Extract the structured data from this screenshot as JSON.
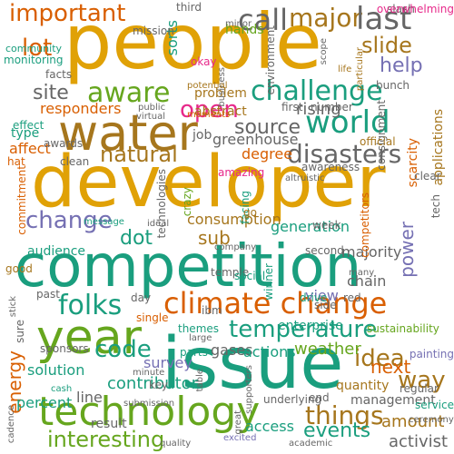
{
  "palette": {
    "gold": "#e0a106",
    "teal": "#1a9e7e",
    "orange": "#d95f02",
    "purple": "#7570b3",
    "green": "#66a61e",
    "brown": "#a6761d",
    "gray": "#666666",
    "pink": "#e7298a"
  },
  "words": [
    {
      "text": "people",
      "color": "gold"
    },
    {
      "text": "developer",
      "color": "gold"
    },
    {
      "text": "competition",
      "color": "teal"
    },
    {
      "text": "issue",
      "color": "teal"
    },
    {
      "text": "technology",
      "color": "green"
    },
    {
      "text": "water",
      "color": "brown"
    },
    {
      "text": "climate change",
      "color": "orange"
    },
    {
      "text": "year",
      "color": "green"
    },
    {
      "text": "world",
      "color": "teal"
    },
    {
      "text": "challenge",
      "color": "teal"
    },
    {
      "text": "things",
      "color": "brown"
    },
    {
      "text": "folks",
      "color": "teal"
    },
    {
      "text": "important",
      "color": "orange"
    },
    {
      "text": "temperature",
      "color": "teal"
    },
    {
      "text": "natural",
      "color": "brown"
    },
    {
      "text": "disasters",
      "color": "gray"
    },
    {
      "text": "call",
      "color": "gray"
    },
    {
      "text": "major",
      "color": "brown"
    },
    {
      "text": "last",
      "color": "gray"
    },
    {
      "text": "slide",
      "color": "brown"
    },
    {
      "text": "aware",
      "color": "green"
    },
    {
      "text": "change",
      "color": "purple"
    },
    {
      "text": "code",
      "color": "teal"
    },
    {
      "text": "idea",
      "color": "brown"
    },
    {
      "text": "open",
      "color": "pink"
    },
    {
      "text": "way",
      "color": "brown"
    },
    {
      "text": "interesting",
      "color": "green"
    },
    {
      "text": "events",
      "color": "teal"
    },
    {
      "text": "lot",
      "color": "orange"
    },
    {
      "text": "site",
      "color": "gray"
    },
    {
      "text": "help",
      "color": "purple"
    },
    {
      "text": "source",
      "color": "gray"
    },
    {
      "text": "power",
      "color": "purple"
    },
    {
      "text": "dot",
      "color": "teal"
    },
    {
      "text": "energy",
      "color": "orange"
    },
    {
      "text": "next",
      "color": "orange"
    },
    {
      "text": "sub",
      "color": "brown"
    },
    {
      "text": "generation",
      "color": "teal"
    },
    {
      "text": "rising",
      "color": "gray"
    },
    {
      "text": "majority",
      "color": "gray"
    },
    {
      "text": "responders",
      "color": "orange"
    },
    {
      "text": "sorts",
      "color": "teal"
    },
    {
      "text": "hands",
      "color": "green"
    },
    {
      "text": "greenhouse",
      "color": "gray"
    },
    {
      "text": "degree",
      "color": "orange"
    },
    {
      "text": "amount",
      "color": "brown"
    },
    {
      "text": "gases",
      "color": "gray"
    },
    {
      "text": "weather",
      "color": "green"
    },
    {
      "text": "actions",
      "color": "teal"
    },
    {
      "text": "survey",
      "color": "purple"
    },
    {
      "text": "percent",
      "color": "teal"
    },
    {
      "text": "contributor",
      "color": "teal"
    },
    {
      "text": "line",
      "color": "gray"
    },
    {
      "text": "access",
      "color": "teal"
    },
    {
      "text": "activist",
      "color": "gray"
    },
    {
      "text": "management",
      "color": "gray"
    },
    {
      "text": "view",
      "color": "purple"
    },
    {
      "text": "chain",
      "color": "gray"
    },
    {
      "text": "consumption",
      "color": "brown"
    },
    {
      "text": "audience",
      "color": "teal"
    },
    {
      "text": "solution",
      "color": "teal"
    },
    {
      "text": "result",
      "color": "gray"
    },
    {
      "text": "quantity",
      "color": "brown"
    },
    {
      "text": "abstract",
      "color": "brown"
    },
    {
      "text": "problem",
      "color": "brown"
    },
    {
      "text": "affect",
      "color": "orange"
    },
    {
      "text": "type",
      "color": "teal"
    },
    {
      "text": "facts",
      "color": "gray"
    },
    {
      "text": "monitoring",
      "color": "teal"
    },
    {
      "text": "environment",
      "color": "gray"
    },
    {
      "text": "mission",
      "color": "gray"
    },
    {
      "text": "community",
      "color": "teal"
    },
    {
      "text": "scarcity",
      "color": "orange"
    },
    {
      "text": "applications",
      "color": "brown"
    },
    {
      "text": "job",
      "color": "gray"
    },
    {
      "text": "enterprise",
      "color": "teal"
    },
    {
      "text": "winner",
      "color": "teal"
    },
    {
      "text": "sustainability",
      "color": "green"
    },
    {
      "text": "third",
      "color": "gray"
    },
    {
      "text": "slash",
      "color": "gray"
    },
    {
      "text": "overwhelming",
      "color": "pink"
    },
    {
      "text": "minor",
      "color": "gray"
    },
    {
      "text": "scope",
      "color": "gray"
    },
    {
      "text": "particular",
      "color": "brown"
    },
    {
      "text": "life",
      "color": "brown"
    },
    {
      "text": "bunch",
      "color": "gray"
    },
    {
      "text": "consignment",
      "color": "gray"
    },
    {
      "text": "okay",
      "color": "pink"
    },
    {
      "text": "business",
      "color": "gray"
    },
    {
      "text": "potential",
      "color": "brown"
    },
    {
      "text": "public",
      "color": "gray"
    },
    {
      "text": "virtual",
      "color": "gray"
    },
    {
      "text": "moments",
      "color": "orange"
    },
    {
      "text": "effect",
      "color": "teal"
    },
    {
      "text": "first",
      "color": "gray"
    },
    {
      "text": "number",
      "color": "gray"
    },
    {
      "text": "official",
      "color": "brown"
    },
    {
      "text": "awards",
      "color": "gray"
    },
    {
      "text": "awareness",
      "color": "gray"
    },
    {
      "text": "hat",
      "color": "orange"
    },
    {
      "text": "clean",
      "color": "gray"
    },
    {
      "text": "technologies",
      "color": "gray"
    },
    {
      "text": "commitment",
      "color": "orange"
    },
    {
      "text": "facing",
      "color": "teal"
    },
    {
      "text": "amazing",
      "color": "pink"
    },
    {
      "text": "altruistic",
      "color": "gray"
    },
    {
      "text": "competitors",
      "color": "orange"
    },
    {
      "text": "clear",
      "color": "gray"
    },
    {
      "text": "tech",
      "color": "gray"
    },
    {
      "text": "crazy",
      "color": "green"
    },
    {
      "text": "go",
      "color": "brown"
    },
    {
      "text": "message",
      "color": "teal"
    },
    {
      "text": "ideal",
      "color": "gray"
    },
    {
      "text": "week",
      "color": "gray"
    },
    {
      "text": "company",
      "color": "gray"
    },
    {
      "text": "temple",
      "color": "gray"
    },
    {
      "text": "second",
      "color": "gray"
    },
    {
      "text": "good",
      "color": "brown"
    },
    {
      "text": "stick",
      "color": "gray"
    },
    {
      "text": "social",
      "color": "teal"
    },
    {
      "text": "many",
      "color": "gray"
    },
    {
      "text": "past",
      "color": "gray"
    },
    {
      "text": "day",
      "color": "gray"
    },
    {
      "text": "drive",
      "color": "teal"
    },
    {
      "text": "side",
      "color": "gray"
    },
    {
      "text": "red",
      "color": "gray"
    },
    {
      "text": "ibm",
      "color": "gray"
    },
    {
      "text": "single",
      "color": "orange"
    },
    {
      "text": "themes",
      "color": "teal"
    },
    {
      "text": "large",
      "color": "gray"
    },
    {
      "text": "parts",
      "color": "teal"
    },
    {
      "text": "sure",
      "color": "gray"
    },
    {
      "text": "sponsors",
      "color": "gray"
    },
    {
      "text": "painting",
      "color": "purple"
    },
    {
      "text": "minute",
      "color": "gray"
    },
    {
      "text": "table",
      "color": "gray"
    },
    {
      "text": "key",
      "color": "gray"
    },
    {
      "text": "cash",
      "color": "teal"
    },
    {
      "text": "submission",
      "color": "gray"
    },
    {
      "text": "supporters",
      "color": "gray"
    },
    {
      "text": "regular",
      "color": "gray"
    },
    {
      "text": "service",
      "color": "teal"
    },
    {
      "text": "cadence",
      "color": "gray"
    },
    {
      "text": "great",
      "color": "gray"
    },
    {
      "text": "underlying",
      "color": "gray"
    },
    {
      "text": "end",
      "color": "gray"
    },
    {
      "text": "ceremony",
      "color": "gray"
    },
    {
      "text": "quality",
      "color": "gray"
    },
    {
      "text": "excited",
      "color": "purple"
    },
    {
      "text": "academic",
      "color": "gray"
    }
  ]
}
